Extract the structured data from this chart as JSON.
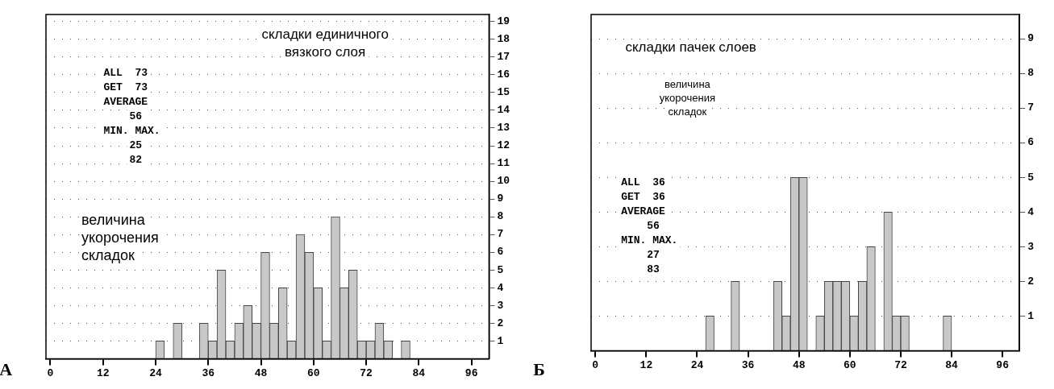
{
  "chart_data": [
    {
      "type": "histogram",
      "title": "складки единичного\nвязкого слоя",
      "bins": [
        24,
        26,
        28,
        30,
        32,
        34,
        36,
        38,
        40,
        42,
        44,
        46,
        48,
        50,
        52,
        54,
        56,
        58,
        60,
        62,
        64,
        66,
        68,
        70,
        72,
        74,
        76,
        78,
        80,
        82
      ],
      "values": [
        1,
        0,
        2,
        0,
        0,
        2,
        1,
        5,
        1,
        2,
        3,
        2,
        6,
        2,
        4,
        1,
        7,
        6,
        4,
        1,
        8,
        4,
        5,
        1,
        1,
        2,
        1,
        0,
        1
      ],
      "color": "#c8c8c8",
      "xlim": [
        -1,
        100
      ],
      "xticks": [
        0,
        12,
        24,
        36,
        48,
        60,
        72,
        84,
        96
      ],
      "ylim": [
        0,
        19.4
      ],
      "yticks": [
        1,
        2,
        3,
        4,
        5,
        6,
        7,
        8,
        9,
        10,
        11,
        12,
        13,
        14,
        15,
        16,
        17,
        18,
        19
      ],
      "grid": "y",
      "legend": false,
      "annotations": [
        "ALL  73\nGET  73\nAVERAGE\n56\nMIN. MAX.\n25\n82",
        "величина\nукорочения\nскладок",
        "А"
      ]
    },
    {
      "type": "histogram",
      "title": "складки пачек слоев",
      "bins": [
        26,
        28,
        30,
        32,
        34,
        36,
        38,
        40,
        42,
        44,
        46,
        48,
        50,
        52,
        54,
        56,
        58,
        60,
        62,
        64,
        66,
        68,
        70,
        72,
        74,
        76,
        78,
        80,
        82,
        84
      ],
      "values": [
        1,
        0,
        0,
        2,
        0,
        0,
        0,
        0,
        2,
        1,
        5,
        5,
        0,
        1,
        2,
        2,
        2,
        1,
        2,
        3,
        0,
        4,
        1,
        1,
        0,
        0,
        0,
        0,
        1
      ],
      "color": "#c8c8c8",
      "xlim": [
        -1,
        100
      ],
      "xticks": [
        0,
        12,
        24,
        36,
        48,
        60,
        72,
        84,
        96
      ],
      "ylim": [
        0,
        9.7
      ],
      "yticks": [
        1,
        2,
        3,
        4,
        5,
        6,
        7,
        8,
        9
      ],
      "grid": "y",
      "legend": false,
      "annotations": [
        "величина\nукорочения\nскладок",
        "ALL  36\nGET  36\nAVERAGE\n56\nMIN. MAX.\n27\n83",
        "Б"
      ]
    }
  ]
}
